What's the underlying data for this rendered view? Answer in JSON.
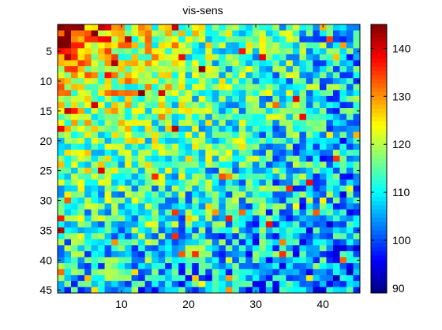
{
  "chart_data": {
    "type": "heatmap",
    "title": "vis-sens",
    "xlabel": "",
    "ylabel": "",
    "rows": 45,
    "cols": 45,
    "x_ticks": [
      "10",
      "20",
      "30",
      "40"
    ],
    "x_tick_values": [
      10,
      20,
      30,
      40
    ],
    "y_ticks": [
      "5",
      "10",
      "15",
      "20",
      "25",
      "30",
      "35",
      "40",
      "45"
    ],
    "y_tick_values": [
      5,
      10,
      15,
      20,
      25,
      30,
      35,
      40,
      45
    ],
    "colorbar": {
      "ticks": [
        "90",
        "100",
        "110",
        "120",
        "130",
        "140"
      ],
      "tick_values": [
        90,
        100,
        110,
        120,
        130,
        140
      ],
      "clim": [
        89,
        145
      ],
      "colormap": "jet"
    },
    "pattern_description": "values high (~125-145) near top-left corner (rows 1-12, cols 1-10), decreasing toward lower-right (~95-110) with noisy cell-to-cell variation",
    "value_model": {
      "base_max": 133,
      "base_min": 102,
      "noise_amplitude": 12,
      "seed": 7
    }
  },
  "colors": {
    "background": "#ffffff",
    "axis": "#000000"
  }
}
